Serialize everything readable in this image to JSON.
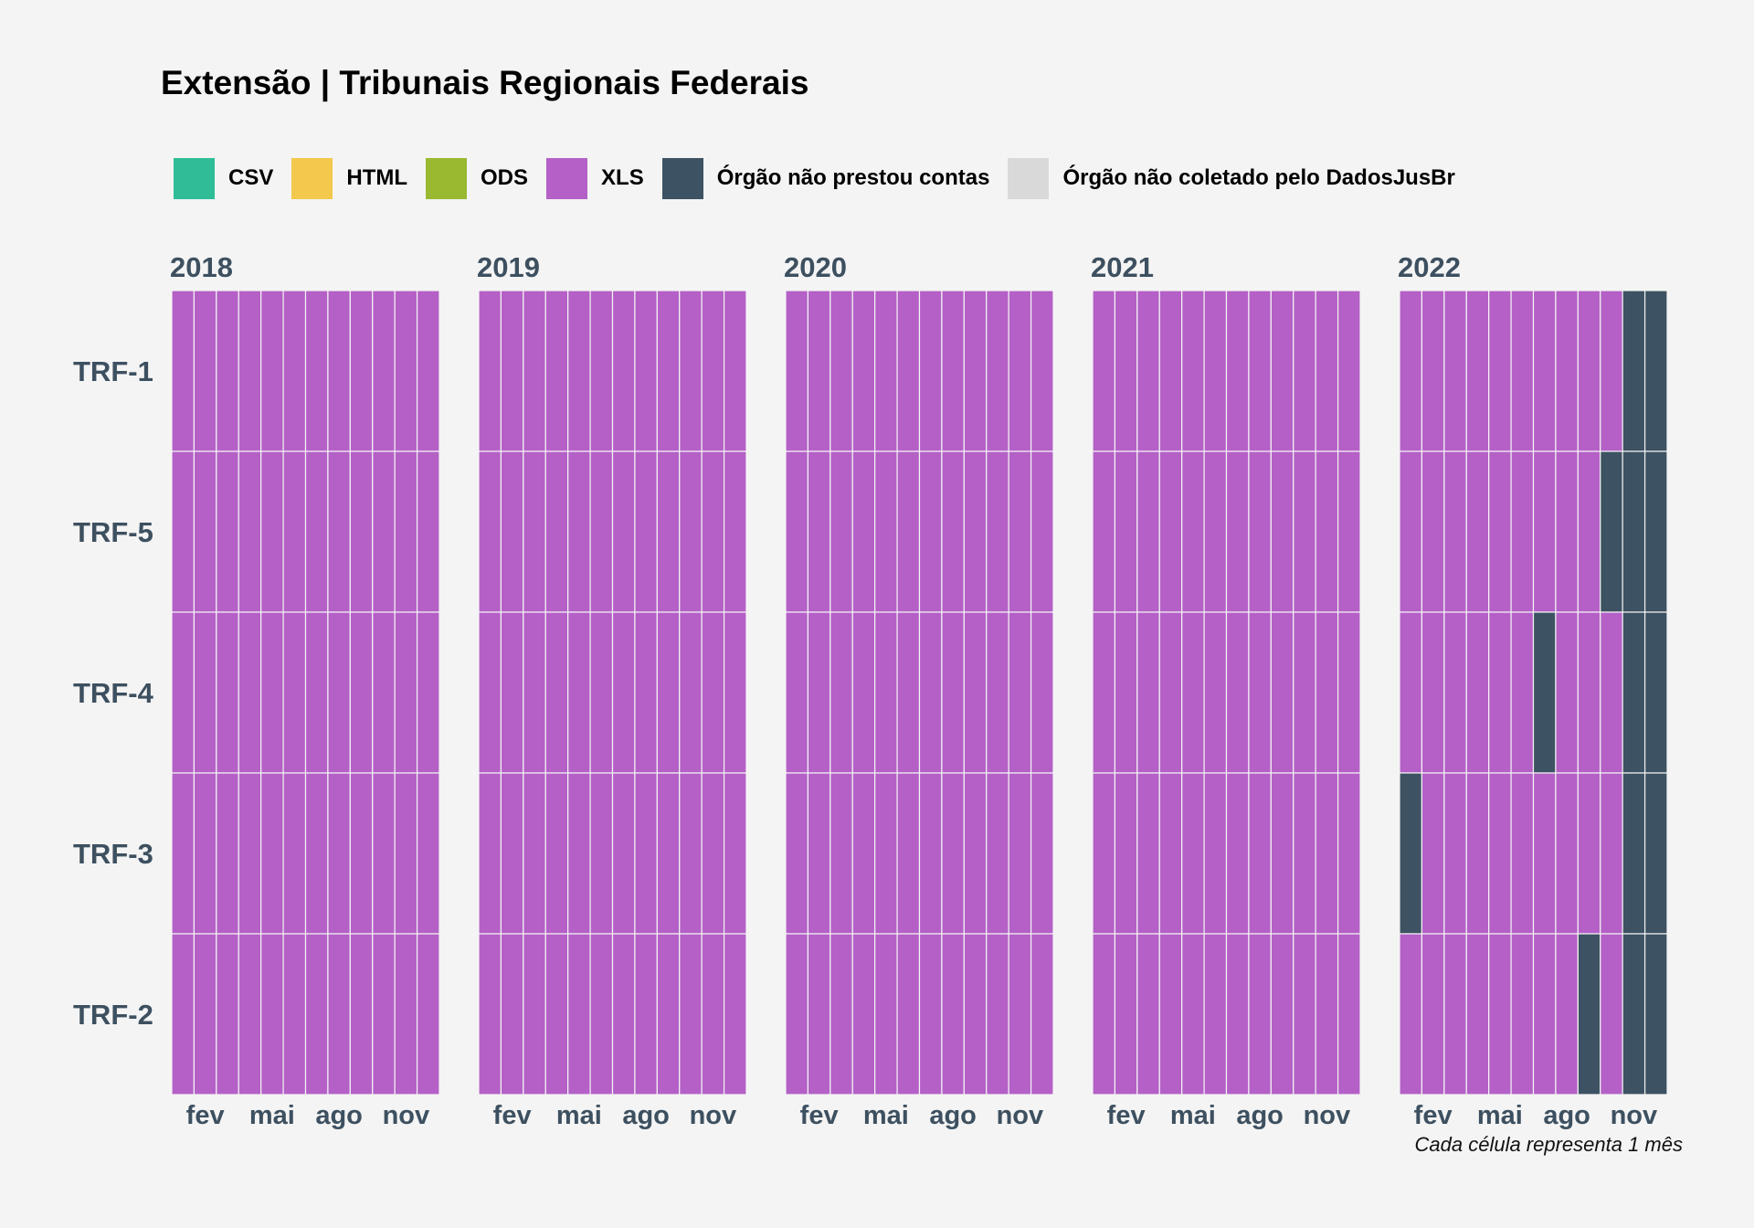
{
  "title": "Extensão | Tribunais Regionais Federais",
  "caption": "Cada célula representa 1 mês",
  "legend": [
    {
      "label": "CSV",
      "color": "#2ebd97"
    },
    {
      "label": "HTML",
      "color": "#f2c94c"
    },
    {
      "label": "ODS",
      "color": "#99b931"
    },
    {
      "label": "XLS",
      "color": "#b460c7"
    },
    {
      "label": "Órgão não prestou contas",
      "color": "#3d5262"
    },
    {
      "label": "Órgão não coletado pelo DadosJusBr",
      "color": "#d9d9d9"
    }
  ],
  "chart_data": {
    "type": "heatmap",
    "title": "Extensão | Tribunais Regionais Federais",
    "facets": [
      "2018",
      "2019",
      "2020",
      "2021",
      "2022"
    ],
    "rows": [
      "TRF-1",
      "TRF-5",
      "TRF-4",
      "TRF-3",
      "TRF-2"
    ],
    "months": [
      1,
      2,
      3,
      4,
      5,
      6,
      7,
      8,
      9,
      10,
      11,
      12
    ],
    "x_ticks": [
      {
        "month": 2,
        "label": "fev"
      },
      {
        "month": 5,
        "label": "mai"
      },
      {
        "month": 8,
        "label": "ago"
      },
      {
        "month": 11,
        "label": "nov"
      }
    ],
    "categories": {
      "XLS": "XLS",
      "NONE": "Órgão não prestou contas"
    },
    "default_status": "XLS",
    "exceptions": [
      {
        "year": "2022",
        "row": "TRF-1",
        "months": [
          11,
          12
        ],
        "status": "NONE"
      },
      {
        "year": "2022",
        "row": "TRF-5",
        "months": [
          10,
          11,
          12
        ],
        "status": "NONE"
      },
      {
        "year": "2022",
        "row": "TRF-4",
        "months": [
          7,
          11,
          12
        ],
        "status": "NONE"
      },
      {
        "year": "2022",
        "row": "TRF-3",
        "months": [
          1,
          11,
          12
        ],
        "status": "NONE"
      },
      {
        "year": "2022",
        "row": "TRF-2",
        "months": [
          9,
          11,
          12
        ],
        "status": "NONE"
      }
    ],
    "caption": "Cada célula representa 1 mês"
  }
}
